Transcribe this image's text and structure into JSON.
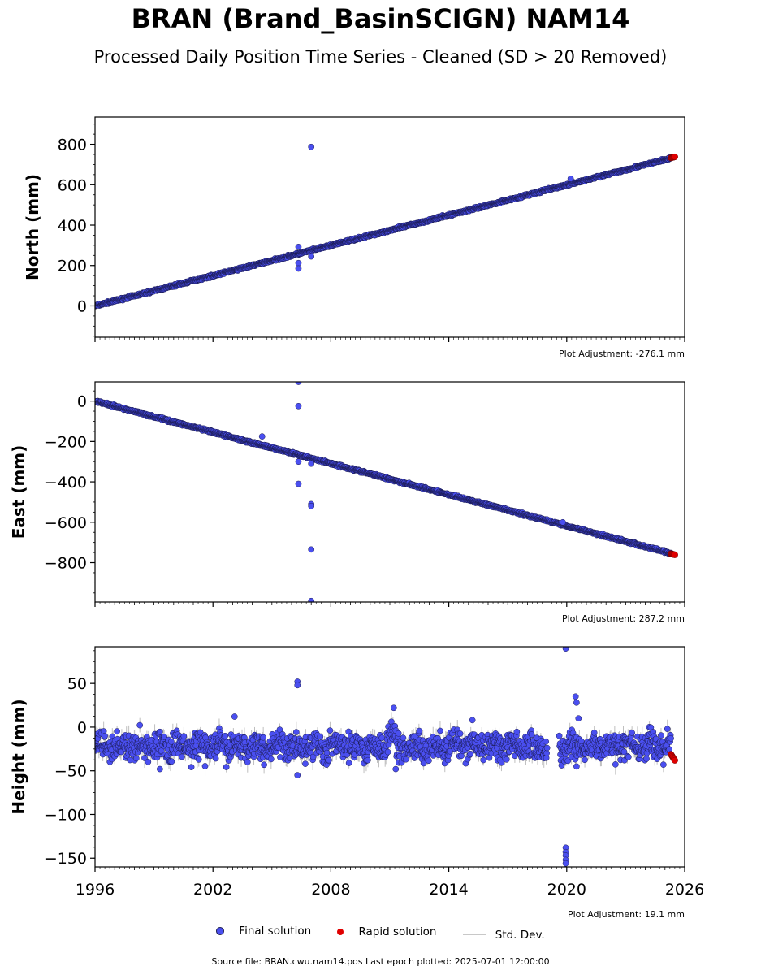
{
  "title": "BRAN (Brand_BasinSCIGN) NAM14",
  "subtitle": "Processed Daily Position Time Series - Cleaned (SD > 20 Removed)",
  "legend": {
    "final": "Final solution",
    "rapid": "Rapid solution",
    "std": "Std. Dev."
  },
  "footer": "Source file: BRAN.cwu.nam14.pos  Last epoch plotted: 2025-07-01 12:00:00",
  "colors": {
    "final": "#4a4ff0",
    "rapid": "#e00000",
    "std": "#bfbfbf",
    "edge": "#1a1a50"
  },
  "chart_data": [
    {
      "type": "scatter",
      "ylabel": "North (mm)",
      "adjustment": "Plot Adjustment: -276.1 mm",
      "xlim": [
        1996,
        2026
      ],
      "ylim": [
        -155,
        935
      ],
      "yticks": [
        0,
        200,
        400,
        600,
        800
      ],
      "ytick_labels": [
        "0",
        "200",
        "400",
        "600",
        "800"
      ],
      "xticks": [
        1996,
        2002,
        2008,
        2014,
        2020,
        2026
      ],
      "series": [
        {
          "name": "Final solution",
          "trend": {
            "x0": 1996.0,
            "x1": 2025.45,
            "y0": 0,
            "y1": 735
          },
          "scatter": 4,
          "outliers": [
            [
              2006.35,
              292
            ],
            [
              2006.35,
              212
            ],
            [
              2006.35,
              185
            ],
            [
              2007.0,
              787
            ],
            [
              2007.0,
              245
            ],
            [
              2020.2,
              630
            ]
          ]
        },
        {
          "name": "Rapid solution",
          "x0": 2025.3,
          "x1": 2025.5,
          "y0": 733,
          "y1": 738
        }
      ]
    },
    {
      "type": "scatter",
      "ylabel": "East (mm)",
      "adjustment": "Plot Adjustment: 287.2 mm",
      "xlim": [
        1996,
        2026
      ],
      "ylim": [
        -995,
        95
      ],
      "yticks": [
        -800,
        -600,
        -400,
        -200,
        0
      ],
      "ytick_labels": [
        "−800",
        "−600",
        "−400",
        "−200",
        "0"
      ],
      "xticks": [
        1996,
        2002,
        2008,
        2014,
        2020,
        2026
      ],
      "series": [
        {
          "name": "Final solution",
          "trend": {
            "x0": 1996.0,
            "x1": 2025.45,
            "y0": 0,
            "y1": -758
          },
          "scatter": 4,
          "outliers": [
            [
              2006.35,
              95
            ],
            [
              2006.35,
              -25
            ],
            [
              2006.35,
              -300
            ],
            [
              2006.35,
              -410
            ],
            [
              2007.0,
              -310
            ],
            [
              2007.0,
              -510
            ],
            [
              2007.0,
              -520
            ],
            [
              2007.0,
              -735
            ],
            [
              2007.0,
              -990
            ],
            [
              2004.5,
              -175
            ],
            [
              2019.8,
              -600
            ]
          ]
        },
        {
          "name": "Rapid solution",
          "x0": 2025.3,
          "x1": 2025.5,
          "y0": -756,
          "y1": -761
        }
      ]
    },
    {
      "type": "scatter",
      "ylabel": "Height (mm)",
      "adjustment": "Plot Adjustment: 19.1 mm",
      "xlim": [
        1996,
        2026
      ],
      "ylim": [
        -160,
        92
      ],
      "yticks": [
        -150,
        -100,
        -50,
        0,
        50
      ],
      "ytick_labels": [
        "−150",
        "−100",
        "−50",
        "0",
        "50"
      ],
      "xticks": [
        1996,
        2002,
        2008,
        2014,
        2020,
        2026
      ],
      "xtick_labels": [
        "1996",
        "2002",
        "2008",
        "2014",
        "2020",
        "2026"
      ],
      "series": [
        {
          "name": "Final solution",
          "mean": -22,
          "scatter": 11,
          "gap": [
            2019.0,
            2019.6
          ],
          "outliers": [
            [
              2003.1,
              12
            ],
            [
              2006.3,
              52
            ],
            [
              2006.3,
              48
            ],
            [
              2006.3,
              -55
            ],
            [
              2011.2,
              22
            ],
            [
              2011.3,
              -48
            ],
            [
              2015.2,
              8
            ],
            [
              2019.95,
              90
            ],
            [
              2019.95,
              -138
            ],
            [
              2019.95,
              -143
            ],
            [
              2019.95,
              -147
            ],
            [
              2019.95,
              -152
            ],
            [
              2019.95,
              -156
            ],
            [
              2020.45,
              35
            ],
            [
              2020.5,
              28
            ],
            [
              2020.6,
              10
            ],
            [
              2020.5,
              -45
            ],
            [
              1999.3,
              -48
            ]
          ]
        },
        {
          "name": "Rapid solution",
          "x0": 2025.3,
          "x1": 2025.5,
          "y0": -31,
          "y1": -38
        }
      ]
    }
  ]
}
